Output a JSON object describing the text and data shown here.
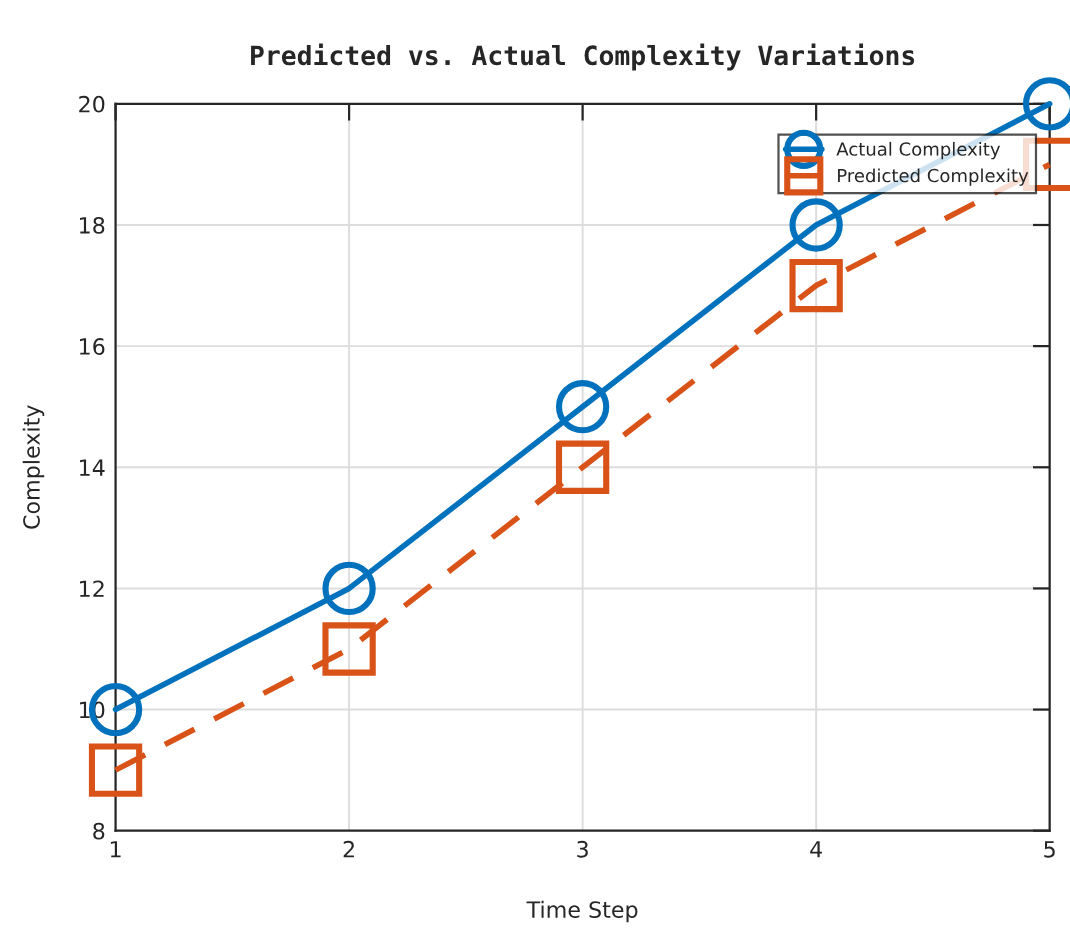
{
  "chart_data": {
    "type": "line",
    "title": "Predicted vs. Actual Complexity Variations",
    "xlabel": "Time Step",
    "ylabel": "Complexity",
    "x": [
      1,
      2,
      3,
      4,
      5
    ],
    "series": [
      {
        "name": "Actual Complexity",
        "color": "#0072bd",
        "values": [
          10,
          12,
          15,
          18,
          20
        ],
        "marker": "circle",
        "line_style": "solid"
      },
      {
        "name": "Predicted Complexity",
        "color": "#d95319",
        "values": [
          9,
          11,
          14,
          17,
          19
        ],
        "marker": "square",
        "line_style": "dashed"
      }
    ],
    "xlim": [
      1,
      5
    ],
    "xticks": [
      1,
      2,
      3,
      4,
      5
    ],
    "ylim": [
      8,
      20
    ],
    "yticks": [
      8,
      10,
      12,
      14,
      16,
      18,
      20
    ],
    "grid": true,
    "legend": "top right"
  }
}
